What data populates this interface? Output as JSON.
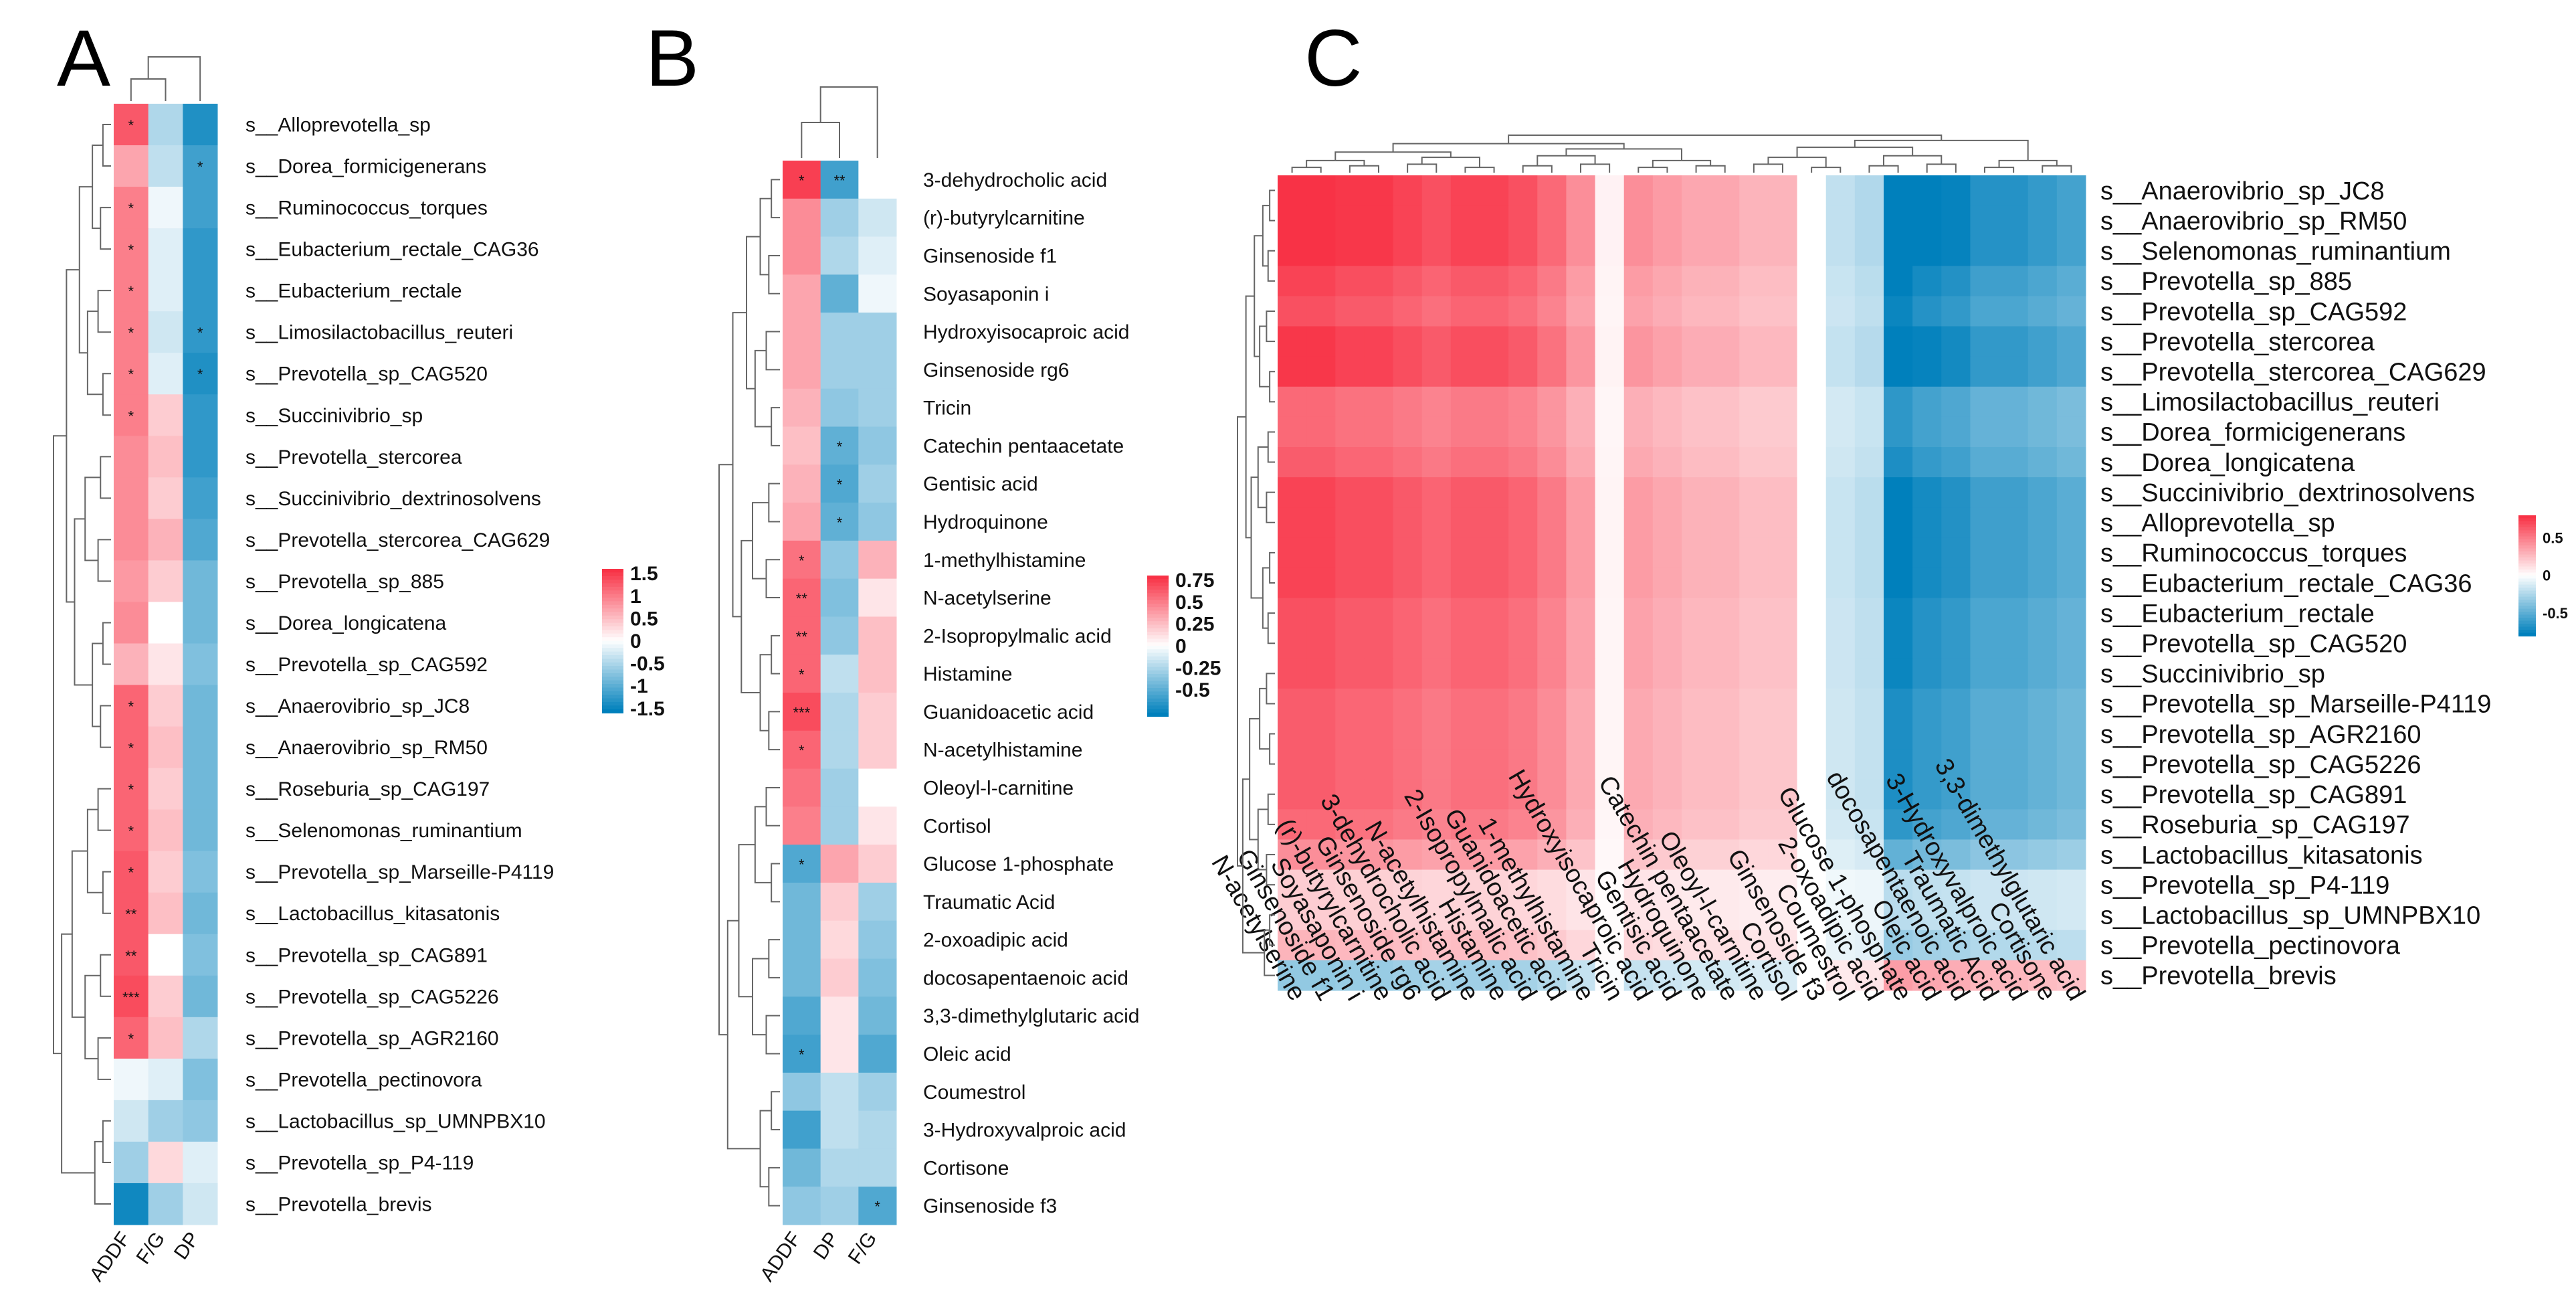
{
  "figure": {
    "panel_labels": [
      "A",
      "B",
      "C"
    ]
  },
  "chart_data": [
    {
      "type": "heatmap",
      "panel": "A",
      "columns": [
        "ADDF",
        "F/G",
        "DP"
      ],
      "rows": [
        "s__Alloprevotella_sp",
        "s__Dorea_formicigenerans",
        "s__Ruminococcus_torques",
        "s__Eubacterium_rectale_CAG36",
        "s__Eubacterium_rectale",
        "s__Limosilactobacillus_reuteri",
        "s__Prevotella_sp_CAG520",
        "s__Succinivibrio_sp",
        "s__Prevotella_stercorea",
        "s__Succinivibrio_dextrinosolvens",
        "s__Prevotella_stercorea_CAG629",
        "s__Prevotella_sp_885",
        "s__Dorea_longicatena",
        "s__Prevotella_sp_CAG592",
        "s__Anaerovibrio_sp_JC8",
        "s__Anaerovibrio_sp_RM50",
        "s__Roseburia_sp_CAG197",
        "s__Selenomonas_ruminantium",
        "s__Prevotella_sp_Marseille-P4119",
        "s__Lactobacillus_kitasatonis",
        "s__Prevotella_sp_CAG891",
        "s__Prevotella_sp_CAG5226",
        "s__Prevotella_sp_AGR2160",
        "s__Prevotella_pectinovora",
        "s__Lactobacillus_sp_UMNPBX10",
        "s__Prevotella_sp_P4-119",
        "s__Prevotella_brevis"
      ],
      "values": [
        [
          1.3,
          -0.5,
          -1.4
        ],
        [
          0.7,
          -0.4,
          -1.2
        ],
        [
          1.0,
          -0.1,
          -1.2
        ],
        [
          1.0,
          -0.2,
          -1.3
        ],
        [
          1.0,
          -0.2,
          -1.3
        ],
        [
          1.0,
          -0.3,
          -1.3
        ],
        [
          1.0,
          -0.2,
          -1.4
        ],
        [
          1.0,
          0.4,
          -1.3
        ],
        [
          0.9,
          0.5,
          -1.3
        ],
        [
          0.9,
          0.4,
          -1.2
        ],
        [
          0.9,
          0.6,
          -1.1
        ],
        [
          0.8,
          0.4,
          -0.9
        ],
        [
          0.9,
          0.0,
          -0.9
        ],
        [
          0.6,
          0.2,
          -0.8
        ],
        [
          1.2,
          0.4,
          -0.9
        ],
        [
          1.2,
          0.5,
          -0.9
        ],
        [
          1.2,
          0.4,
          -0.9
        ],
        [
          1.2,
          0.5,
          -0.9
        ],
        [
          1.3,
          0.4,
          -0.8
        ],
        [
          1.3,
          0.5,
          -0.9
        ],
        [
          1.3,
          0.0,
          -0.8
        ],
        [
          1.4,
          0.4,
          -0.9
        ],
        [
          1.2,
          0.5,
          -0.5
        ],
        [
          -0.1,
          -0.2,
          -0.8
        ],
        [
          -0.3,
          -0.6,
          -0.7
        ],
        [
          -0.6,
          0.3,
          -0.2
        ],
        [
          -1.5,
          -0.6,
          -0.3
        ]
      ],
      "stars": [
        [
          "*",
          "",
          ""
        ],
        [
          "",
          "",
          "*"
        ],
        [
          "*",
          "",
          ""
        ],
        [
          "*",
          "",
          ""
        ],
        [
          "*",
          "",
          ""
        ],
        [
          "*",
          "",
          "*"
        ],
        [
          "*",
          "",
          "*"
        ],
        [
          "*",
          "",
          ""
        ],
        [
          "",
          "",
          ""
        ],
        [
          "",
          "",
          ""
        ],
        [
          "",
          "",
          ""
        ],
        [
          "",
          "",
          ""
        ],
        [
          "",
          "",
          ""
        ],
        [
          "",
          "",
          ""
        ],
        [
          "*",
          "",
          ""
        ],
        [
          "*",
          "",
          ""
        ],
        [
          "*",
          "",
          ""
        ],
        [
          "*",
          "",
          ""
        ],
        [
          "*",
          "",
          ""
        ],
        [
          "**",
          "",
          ""
        ],
        [
          "**",
          "",
          ""
        ],
        [
          "***",
          "",
          ""
        ],
        [
          "*",
          "",
          ""
        ],
        [
          "",
          "",
          ""
        ],
        [
          "",
          "",
          ""
        ],
        [
          "",
          "",
          ""
        ],
        [
          "",
          "",
          ""
        ]
      ],
      "legend_ticks": [
        "1.5",
        "1",
        "0.5",
        "0",
        "-0.5",
        "-1",
        "-1.5"
      ],
      "color_range": [
        -1.6,
        1.6
      ]
    },
    {
      "type": "heatmap",
      "panel": "B",
      "columns": [
        "ADDF",
        "DP",
        "F/G"
      ],
      "rows": [
        "3-dehydrocholic acid",
        "(r)-butyrylcarnitine",
        "Ginsenoside f1",
        "Soyasaponin i",
        "Hydroxyisocaproic acid",
        "Ginsenoside rg6",
        "Tricin",
        "Catechin pentaacetate",
        "Gentisic acid",
        "Hydroquinone",
        "1-methylhistamine",
        "N-acetylserine",
        "2-Isopropylmalic acid",
        "Histamine",
        "Guanidoacetic acid",
        "N-acetylhistamine",
        "Oleoyl-l-carnitine",
        "Cortisol",
        "Glucose 1-phosphate",
        "Traumatic Acid",
        "2-oxoadipic acid",
        "docosapentaenoic acid",
        "3,3-dimethylglutaric acid",
        "Oleic acid",
        "Coumestrol",
        "3-Hydroxyvalproic acid",
        "Cortisone",
        "Ginsenoside f3"
      ],
      "values": [
        [
          0.75,
          -0.6,
          0.0
        ],
        [
          0.45,
          -0.3,
          -0.15
        ],
        [
          0.45,
          -0.25,
          -0.1
        ],
        [
          0.35,
          -0.5,
          -0.05
        ],
        [
          0.35,
          -0.3,
          -0.3
        ],
        [
          0.35,
          -0.3,
          -0.3
        ],
        [
          0.3,
          -0.35,
          -0.3
        ],
        [
          0.25,
          -0.5,
          -0.35
        ],
        [
          0.3,
          -0.55,
          -0.3
        ],
        [
          0.35,
          -0.5,
          -0.35
        ],
        [
          0.55,
          -0.35,
          0.3
        ],
        [
          0.6,
          -0.4,
          0.1
        ],
        [
          0.6,
          -0.35,
          0.25
        ],
        [
          0.6,
          -0.2,
          0.25
        ],
        [
          0.7,
          -0.25,
          0.2
        ],
        [
          0.6,
          -0.25,
          0.2
        ],
        [
          0.55,
          -0.3,
          0.0
        ],
        [
          0.5,
          -0.3,
          0.1
        ],
        [
          -0.55,
          0.35,
          0.2
        ],
        [
          -0.45,
          0.2,
          -0.3
        ],
        [
          -0.45,
          0.15,
          -0.35
        ],
        [
          -0.45,
          0.2,
          -0.4
        ],
        [
          -0.55,
          0.1,
          -0.45
        ],
        [
          -0.6,
          0.1,
          -0.55
        ],
        [
          -0.35,
          -0.2,
          -0.3
        ],
        [
          -0.6,
          -0.2,
          -0.25
        ],
        [
          -0.45,
          -0.25,
          -0.25
        ],
        [
          -0.35,
          -0.3,
          -0.55
        ]
      ],
      "stars": [
        [
          "*",
          "**",
          ""
        ],
        [
          "",
          "",
          ""
        ],
        [
          "",
          "",
          ""
        ],
        [
          "",
          "",
          ""
        ],
        [
          "",
          "",
          ""
        ],
        [
          "",
          "",
          ""
        ],
        [
          "",
          "",
          ""
        ],
        [
          "",
          "*",
          ""
        ],
        [
          "",
          "*",
          ""
        ],
        [
          "",
          "*",
          ""
        ],
        [
          "*",
          "",
          ""
        ],
        [
          "**",
          "",
          ""
        ],
        [
          "**",
          "",
          ""
        ],
        [
          "*",
          "",
          ""
        ],
        [
          "***",
          "",
          ""
        ],
        [
          "*",
          "",
          ""
        ],
        [
          "",
          "",
          ""
        ],
        [
          "",
          "",
          ""
        ],
        [
          "*",
          "",
          ""
        ],
        [
          "",
          "",
          ""
        ],
        [
          "",
          "",
          ""
        ],
        [
          "",
          "",
          ""
        ],
        [
          "",
          "",
          ""
        ],
        [
          "*",
          "",
          ""
        ],
        [
          "",
          "",
          ""
        ],
        [
          "",
          "",
          ""
        ],
        [
          "",
          "",
          ""
        ],
        [
          "",
          "",
          "*"
        ]
      ],
      "legend_ticks": [
        "0.75",
        "0.5",
        "0.25",
        "0",
        "-0.25",
        "-0.5"
      ],
      "color_range": [
        -0.8,
        0.8
      ]
    },
    {
      "type": "heatmap",
      "panel": "C",
      "columns": [
        "N-acetylserine",
        "Ginsenoside f1",
        "Soyasaponin i",
        "(r)-butyrylcarnitine",
        "Ginsenoside rg6",
        "3-dehydrocholic acid",
        "N-acetylhistamine",
        "Histamine",
        "2-Isopropylmalic acid",
        "Guanidoacetic acid",
        "1-methylhistamine",
        "Tricin",
        "Hydroxyisocaproic acid",
        "Gentisic acid",
        "Hydroquinone",
        "Catechin pentaacetate",
        "Oleoyl-l-carnitine",
        "Cortisol",
        "Ginsenoside f3",
        "Coumestrol",
        "2-oxoadipic acid",
        "Glucose 1-phosphate",
        "Oleic acid",
        "docosapentaenoic acid",
        "Traumatic Acid",
        "3-Hydroxyvalproic acid",
        "Cortisone",
        "3,3-dimethylglutaric acid"
      ],
      "rows": [
        "s__Anaerovibrio_sp_JC8",
        "s__Anaerovibrio_sp_RM50",
        "s__Selenomonas_ruminantium",
        "s__Prevotella_sp_885",
        "s__Prevotella_sp_CAG592",
        "s__Prevotella_stercorea",
        "s__Prevotella_stercorea_CAG629",
        "s__Limosilactobacillus_reuteri",
        "s__Dorea_formicigenerans",
        "s__Dorea_longicatena",
        "s__Succinivibrio_dextrinosolvens",
        "s__Alloprevotella_sp",
        "s__Ruminococcus_torques",
        "s__Eubacterium_rectale_CAG36",
        "s__Eubacterium_rectale",
        "s__Prevotella_sp_CAG520",
        "s__Succinivibrio_sp",
        "s__Prevotella_sp_Marseille-P4119",
        "s__Prevotella_sp_AGR2160",
        "s__Prevotella_sp_CAG5226",
        "s__Prevotella_sp_CAG891",
        "s__Roseburia_sp_CAG197",
        "s__Lactobacillus_kitasatonis",
        "s__Prevotella_sp_P4-119",
        "s__Lactobacillus_sp_UMNPBX10",
        "s__Prevotella_pectinovora",
        "s__Prevotella_brevis"
      ],
      "row_effects": [
        0.85,
        0.85,
        0.85,
        0.75,
        0.7,
        0.8,
        0.8,
        0.6,
        0.6,
        0.65,
        0.75,
        0.75,
        0.75,
        0.75,
        0.7,
        0.7,
        0.7,
        0.65,
        0.65,
        0.65,
        0.65,
        0.6,
        0.45,
        0.2,
        0.2,
        0.3,
        -0.35
      ],
      "column_effects": [
        0.85,
        0.85,
        0.8,
        0.8,
        0.75,
        0.7,
        0.75,
        0.75,
        0.7,
        0.6,
        0.45,
        0.05,
        0.45,
        0.4,
        0.35,
        0.35,
        0.3,
        0.3,
        0.0,
        -0.2,
        -0.25,
        -0.95,
        -0.85,
        -0.8,
        -0.7,
        -0.7,
        -0.65,
        -0.6
      ],
      "legend_ticks": [
        "0.5",
        "0",
        "-0.5"
      ],
      "color_range": [
        -0.8,
        0.8
      ],
      "note": "Cell values approximated as clamp(row_effect x column_effect)."
    }
  ]
}
